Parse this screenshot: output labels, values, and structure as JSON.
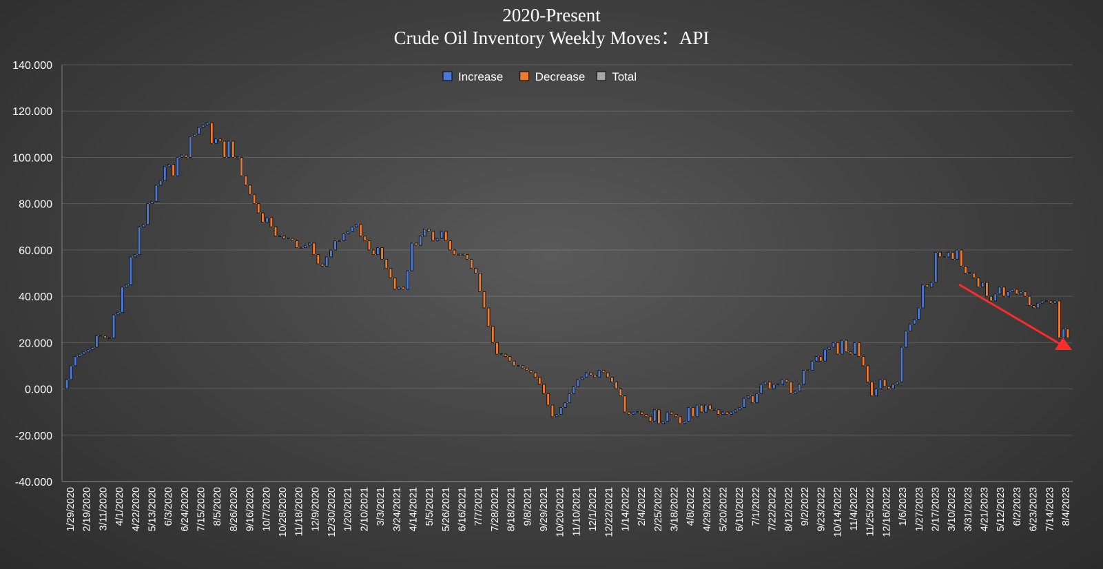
{
  "chart_data": {
    "type": "waterfall",
    "title": "2020-Present",
    "subtitle": "Crude Oil Inventory Weekly Moves：API",
    "ylim": [
      -40,
      140
    ],
    "y_ticks": [
      "140.000",
      "120.000",
      "100.000",
      "80.000",
      "60.000",
      "40.000",
      "20.000",
      "0.000",
      "-20.000",
      "-40.000"
    ],
    "x_ticks": [
      "1/29/2020",
      "2/19/2020",
      "3/11/2020",
      "4/1/2020",
      "4/22/2020",
      "5/13/2020",
      "6/3/2020",
      "6/24/2020",
      "7/15/2020",
      "8/5/2020",
      "8/26/2020",
      "9/16/2020",
      "10/7/2020",
      "10/28/2020",
      "11/18/2020",
      "12/9/2020",
      "12/30/2020",
      "1/20/2021",
      "2/10/2021",
      "3/3/2021",
      "3/24/2021",
      "4/14/2021",
      "5/5/2021",
      "5/26/2021",
      "6/16/2021",
      "7/7/2021",
      "7/28/2021",
      "8/18/2021",
      "9/8/2021",
      "9/29/2021",
      "10/20/2021",
      "11/10/2021",
      "12/1/2021",
      "12/22/2021",
      "1/14/2022",
      "2/4/2022",
      "2/25/2022",
      "3/18/2022",
      "4/8/2022",
      "4/29/2022",
      "5/20/2022",
      "6/10/2022",
      "7/1/2022",
      "7/22/2022",
      "8/12/2022",
      "9/2/2022",
      "9/23/2022",
      "10/14/2022",
      "11/4/2022",
      "11/25/2022",
      "12/16/2022",
      "1/6/2023",
      "1/27/2023",
      "2/17/2023",
      "3/10/2023",
      "3/31/2023",
      "4/21/2023",
      "5/12/2023",
      "6/2/2023",
      "6/23/2023",
      "7/14/2023",
      "8/4/2023"
    ],
    "legend": [
      {
        "label": "Increase",
        "color": "#4a78d6"
      },
      {
        "label": "Decrease",
        "color": "#ee7a2a"
      },
      {
        "label": "Total",
        "color": "#a6a6a6"
      }
    ],
    "legend_position": "top-center",
    "cumulative_levels": [
      0,
      4,
      10,
      14,
      15,
      16,
      17,
      18,
      23,
      23,
      22,
      22,
      32,
      33,
      44,
      45,
      57,
      58,
      70,
      71,
      80,
      81,
      88,
      90,
      96,
      97,
      92,
      100,
      101,
      100,
      109,
      110,
      113,
      114,
      115,
      106,
      108,
      107,
      100,
      107,
      100,
      100,
      92,
      88,
      84,
      80,
      76,
      72,
      74,
      70,
      66,
      66,
      65,
      65,
      64,
      61,
      61,
      62,
      63,
      58,
      54,
      53,
      57,
      60,
      64,
      64,
      67,
      68,
      70,
      71,
      66,
      64,
      60,
      58,
      61,
      56,
      52,
      48,
      43,
      44,
      43,
      51,
      63,
      62,
      66,
      69,
      68,
      64,
      65,
      68,
      64,
      60,
      58,
      58,
      58,
      56,
      52,
      50,
      42,
      35,
      27,
      20,
      15,
      15,
      14,
      12,
      10,
      10,
      9,
      8,
      7,
      5,
      2,
      -2,
      -7,
      -12,
      -11,
      -8,
      -6,
      -2,
      1,
      4,
      5,
      7,
      6,
      5,
      8,
      7,
      5,
      3,
      0,
      -3,
      -10,
      -11,
      -10,
      -10,
      -11,
      -12,
      -14,
      -9,
      -15,
      -14,
      -10,
      -11,
      -12,
      -15,
      -14,
      -8,
      -12,
      -7,
      -10,
      -7,
      -9,
      -9,
      -11,
      -10,
      -11,
      -10,
      -9,
      -8,
      -4,
      -3,
      -6,
      -2,
      2,
      3,
      0,
      2,
      2,
      4,
      3,
      -2,
      -1,
      2,
      8,
      8,
      12,
      14,
      12,
      17,
      18,
      20,
      15,
      21,
      16,
      15,
      20,
      14,
      10,
      3,
      -3,
      0,
      4,
      1,
      0,
      2,
      3,
      18,
      25,
      28,
      30,
      35,
      45,
      44,
      46,
      59,
      57,
      57,
      59,
      56,
      60,
      53,
      50,
      50,
      48,
      44,
      46,
      40,
      38,
      41,
      44,
      40,
      42,
      43,
      41,
      42,
      40,
      36,
      35,
      37,
      38,
      38,
      37,
      38,
      22,
      26,
      22
    ],
    "annotation": "red arrow pointing downward to latest readings"
  }
}
